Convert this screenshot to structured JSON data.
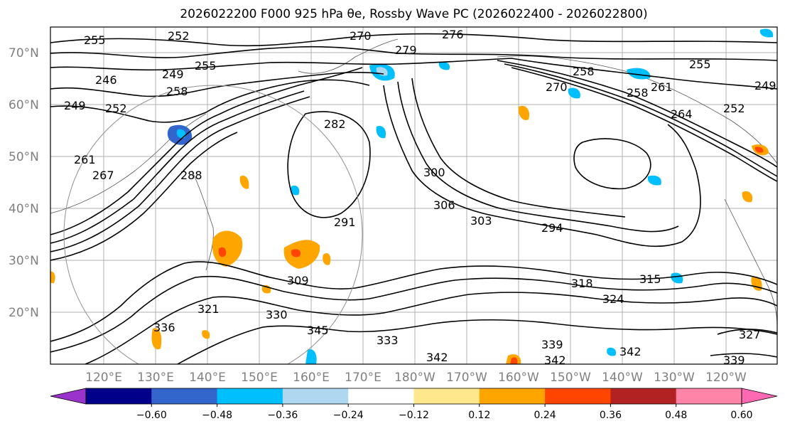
{
  "title": "2026022200 F000 925 hPa θe, Rossby Wave PC (2026022400 - 2026022800)",
  "latitude_labels": [
    "70°N",
    "60°N",
    "50°N",
    "40°N",
    "30°N",
    "20°N"
  ],
  "longitude_labels": [
    "120°E",
    "130°E",
    "140°E",
    "150°E",
    "160°E",
    "170°E",
    "180°W",
    "170°W",
    "160°W",
    "150°W",
    "140°W",
    "130°W",
    "120°W"
  ],
  "contour_labels": [
    "255",
    "252",
    "270",
    "276",
    "279",
    "246",
    "249",
    "255",
    "258",
    "270",
    "258",
    "261",
    "255",
    "249",
    "249",
    "252",
    "258",
    "252",
    "264",
    "261",
    "267",
    "282",
    "300",
    "306",
    "288",
    "291",
    "294",
    "303",
    "309",
    "318",
    "315",
    "324",
    "321",
    "330",
    "336",
    "333",
    "339",
    "345",
    "342",
    "342",
    "339",
    "327",
    "342"
  ],
  "colorbar": {
    "ticks": [
      "−0.60",
      "−0.48",
      "−0.36",
      "−0.24",
      "−0.12",
      "0.12",
      "0.24",
      "0.36",
      "0.48",
      "0.60"
    ],
    "colors": [
      "#9933cc",
      "#00008b",
      "#3366cc",
      "#00bfff",
      "#add8f0",
      "#ffffff",
      "#ffe88c",
      "#ffa500",
      "#ff4500",
      "#b22222",
      "#ff85a8",
      "#ff69b4"
    ]
  },
  "fill_colors": {
    "orange": "#ffa500",
    "red": "#ff4500",
    "light_blue": "#00bfff",
    "blue": "#3366cc",
    "pale_blue": "#add8f0"
  }
}
